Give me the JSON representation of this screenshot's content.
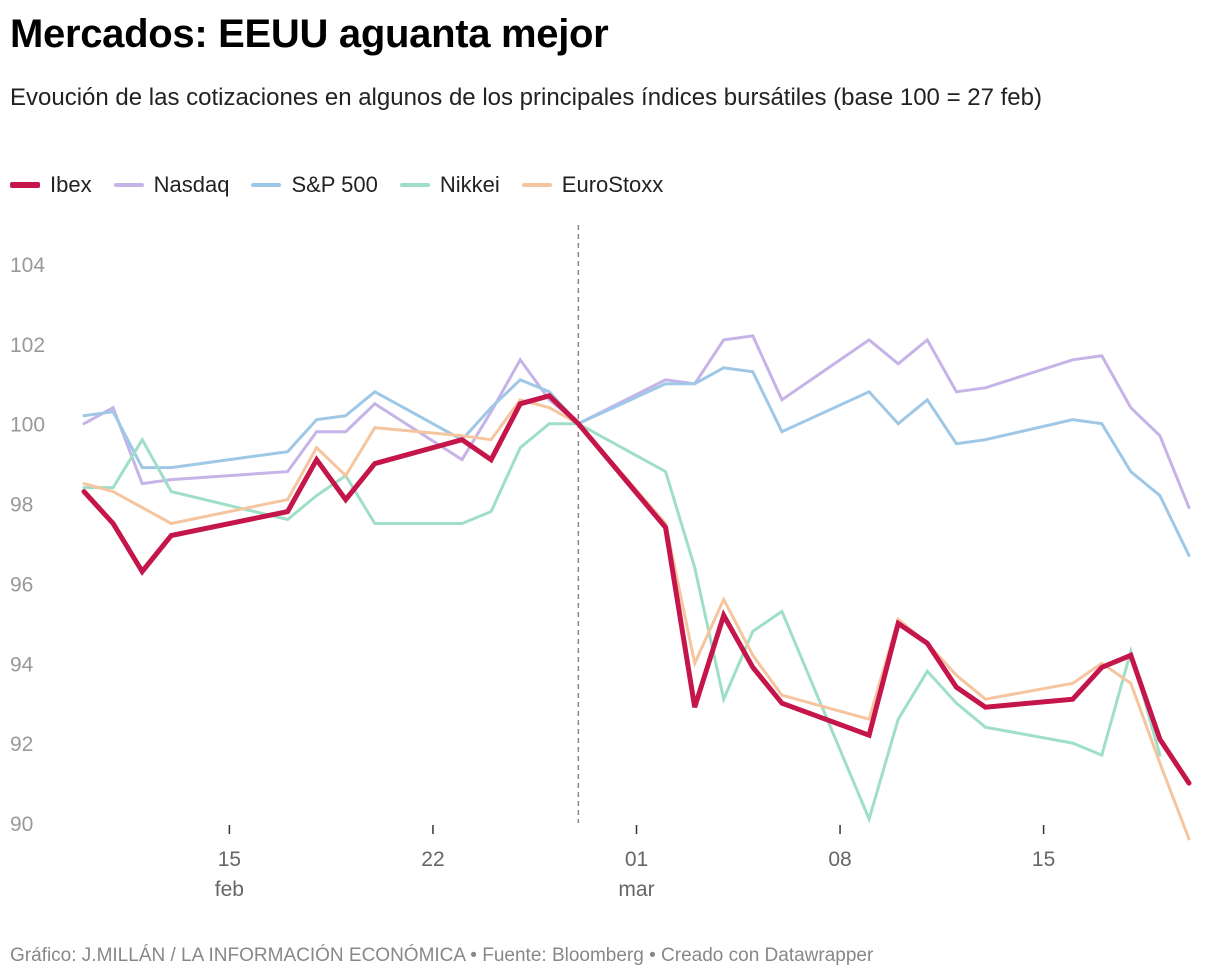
{
  "title": "Mercados: EEUU aguanta mejor",
  "subtitle": "Evoución de las cotizaciones en algunos de los principales índices bursátiles (base 100 = 27 feb)",
  "footer": "Gráfico: J.MILLÁN / LA INFORMACIÓN ECONÓMICA • Fuente: Bloomberg • Creado con Datawrapper",
  "chart_data": {
    "type": "line",
    "title": "Mercados: EEUU aguanta mejor",
    "ylim": [
      90,
      104
    ],
    "yticks": [
      "90",
      "92",
      "94",
      "96",
      "98",
      "100",
      "102",
      "104"
    ],
    "xticks": [
      {
        "date": "02-15",
        "label": "15",
        "sublabel": "feb"
      },
      {
        "date": "02-22",
        "label": "22",
        "sublabel": ""
      },
      {
        "date": "03-01",
        "label": "01",
        "sublabel": "mar"
      },
      {
        "date": "03-08",
        "label": "08",
        "sublabel": ""
      },
      {
        "date": "03-15",
        "label": "15",
        "sublabel": ""
      }
    ],
    "reference_line": {
      "date": "02-27",
      "style": "dashed"
    },
    "grid": false,
    "legend_placement": "top-left",
    "x": [
      "02-10",
      "02-11",
      "02-12",
      "02-13",
      "02-17",
      "02-18",
      "02-19",
      "02-20",
      "02-23",
      "02-24",
      "02-25",
      "02-26",
      "02-27",
      "03-02",
      "03-03",
      "03-04",
      "03-05",
      "03-06",
      "03-09",
      "03-10",
      "03-11",
      "03-12",
      "03-13",
      "03-16",
      "03-17",
      "03-18",
      "03-19",
      "03-20"
    ],
    "series": [
      {
        "name": "Nasdaq",
        "color": "#c6b4e8",
        "width": 3,
        "values": [
          100.0,
          100.4,
          98.5,
          98.6,
          98.8,
          99.8,
          99.8,
          100.5,
          99.1,
          100.3,
          101.6,
          100.6,
          100,
          101.1,
          101.0,
          102.1,
          102.2,
          100.6,
          102.1,
          101.5,
          102.1,
          100.8,
          100.9,
          101.6,
          101.7,
          100.4,
          99.7,
          97.9
        ]
      },
      {
        "name": "S&P 500",
        "color": "#9fc8e7",
        "width": 3,
        "values": [
          100.2,
          100.3,
          98.9,
          98.9,
          99.3,
          100.1,
          100.2,
          100.8,
          99.6,
          100.4,
          101.1,
          100.8,
          100,
          101.0,
          101.0,
          101.4,
          101.3,
          99.8,
          100.8,
          100.0,
          100.6,
          99.5,
          99.6,
          100.1,
          100.0,
          98.8,
          98.2,
          96.7
        ]
      },
      {
        "name": "Nikkei",
        "color": "#a0dfc7",
        "width": 3,
        "values": [
          98.4,
          98.4,
          99.6,
          98.3,
          97.6,
          98.2,
          98.7,
          97.5,
          97.5,
          97.8,
          99.4,
          100.0,
          100,
          98.8,
          96.4,
          93.1,
          94.8,
          95.3,
          90.1,
          92.6,
          93.8,
          93.0,
          92.4,
          92.0,
          91.7,
          94.3,
          91.7,
          null
        ]
      },
      {
        "name": "EuroStoxx",
        "color": "#f4c59f",
        "width": 3,
        "values": [
          98.5,
          98.3,
          97.9,
          97.5,
          98.1,
          99.4,
          98.7,
          99.9,
          99.7,
          99.6,
          100.6,
          100.4,
          100,
          97.5,
          94.0,
          95.6,
          94.2,
          93.2,
          92.6,
          95.1,
          94.5,
          93.7,
          93.1,
          93.5,
          94.0,
          93.5,
          91.5,
          89.6
        ]
      },
      {
        "name": "Ibex",
        "color": "#c4164b",
        "width": 5,
        "values": [
          98.3,
          97.5,
          96.3,
          97.2,
          97.8,
          99.1,
          98.1,
          99.0,
          99.6,
          99.1,
          100.5,
          100.7,
          100,
          97.4,
          92.9,
          95.2,
          93.9,
          93.0,
          92.2,
          95.0,
          94.5,
          93.4,
          92.9,
          93.1,
          93.9,
          94.2,
          92.1,
          91.0
        ]
      }
    ],
    "legend_order": [
      "Ibex",
      "Nasdaq",
      "S&P 500",
      "Nikkei",
      "EuroStoxx"
    ]
  }
}
